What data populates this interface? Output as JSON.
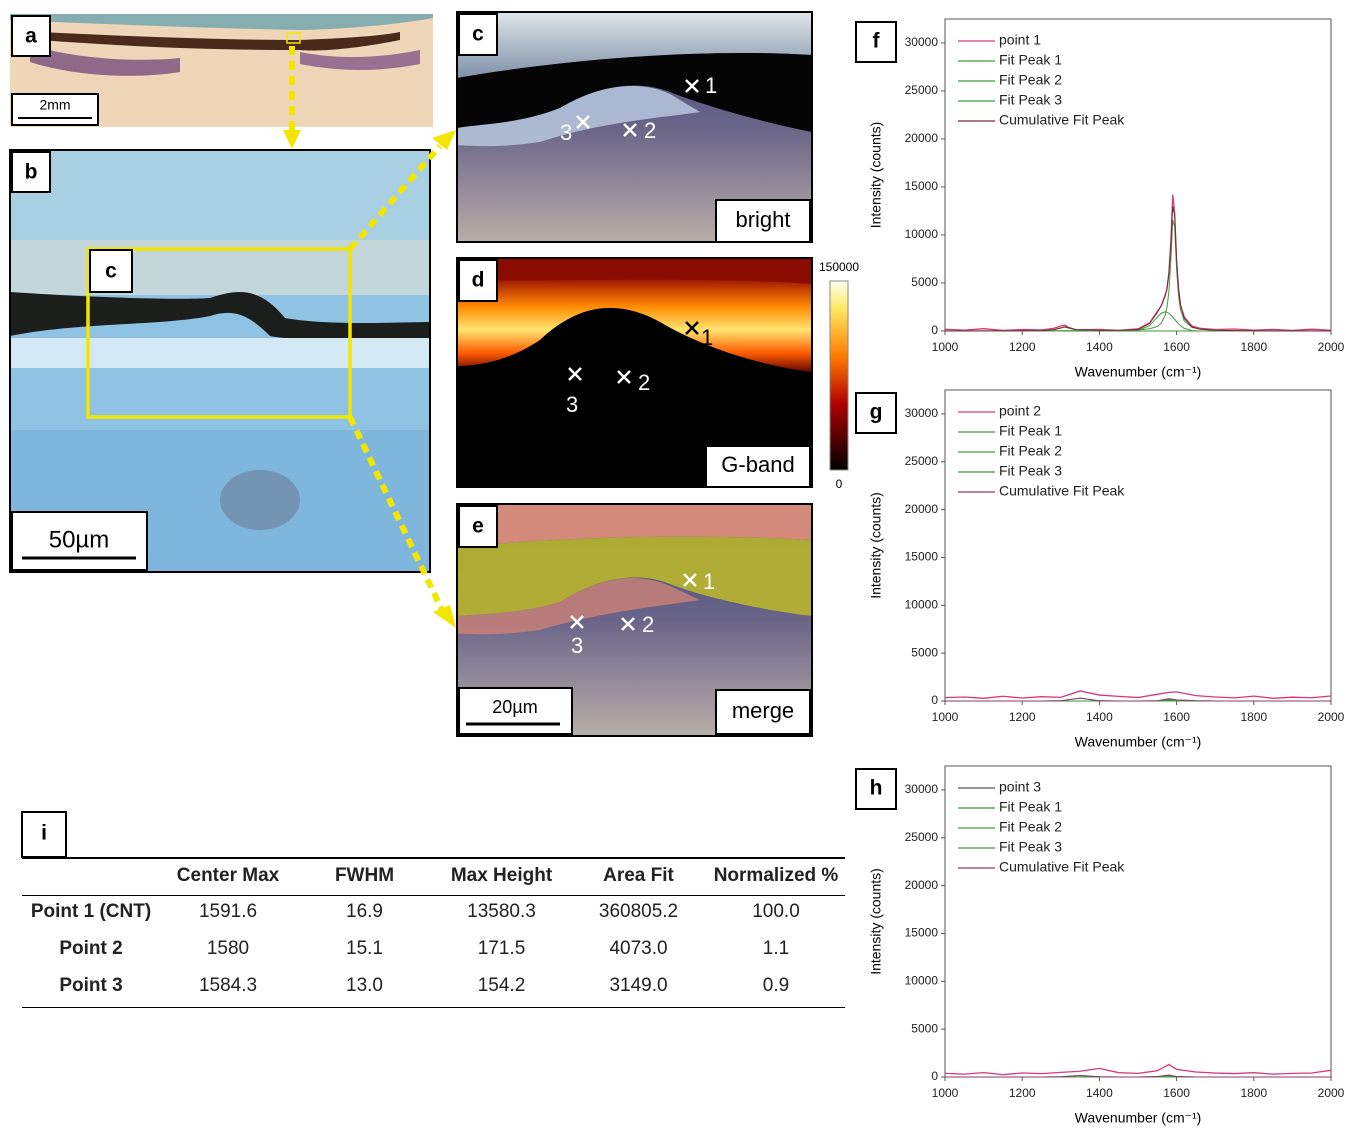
{
  "panels": {
    "a": {
      "label": "a",
      "scale_bar": "2mm"
    },
    "b": {
      "label": "b",
      "scale_bar": "50µm",
      "roi_label": "c"
    },
    "c": {
      "label": "c",
      "mode": "bright",
      "points": [
        "1",
        "2",
        "3"
      ]
    },
    "d": {
      "label": "d",
      "mode": "G-band",
      "points": [
        "1",
        "2",
        "3"
      ],
      "colorbar_ticks": [
        0,
        150000
      ]
    },
    "e": {
      "label": "e",
      "mode": "merge",
      "scale_bar": "20µm",
      "points": [
        "1",
        "2",
        "3"
      ]
    }
  },
  "table": {
    "label": "i",
    "columns": [
      "Center Max",
      "FWHM",
      "Max Height",
      "Area Fit",
      "Normalized %"
    ],
    "rows": [
      {
        "name": "Point 1 (CNT)",
        "cells": [
          "1591.6",
          "16.9",
          "13580.3",
          "360805.2",
          "100.0"
        ]
      },
      {
        "name": "Point 2",
        "cells": [
          "1580",
          "15.1",
          "171.5",
          "4073.0",
          "1.1"
        ]
      },
      {
        "name": "Point 3",
        "cells": [
          "1584.3",
          "13.0",
          "154.2",
          "3149.0",
          "0.9"
        ]
      }
    ]
  },
  "chart_data": [
    {
      "type": "line",
      "panel_label": "f",
      "x_label": "Wavenumber (cm⁻¹)",
      "y_label": "Intensity (counts)",
      "xlim": [
        1000,
        2000
      ],
      "xticks": [
        1000,
        1200,
        1400,
        1600,
        1800,
        2000
      ],
      "ylim": [
        0,
        32500
      ],
      "yticks": [
        0,
        5000,
        10000,
        15000,
        20000,
        25000,
        30000
      ],
      "legend": "upper left",
      "x": [
        1000,
        1050,
        1100,
        1150,
        1200,
        1250,
        1280,
        1300,
        1310,
        1320,
        1340,
        1400,
        1450,
        1500,
        1530,
        1550,
        1560,
        1570,
        1575,
        1580,
        1585,
        1590,
        1595,
        1600,
        1605,
        1610,
        1620,
        1640,
        1660,
        1700,
        1750,
        1800,
        1850,
        1900,
        1950,
        2000
      ],
      "series": [
        {
          "name": "point 1",
          "color": "#d6387a",
          "values": [
            180,
            90,
            240,
            60,
            150,
            110,
            260,
            520,
            610,
            380,
            120,
            170,
            60,
            230,
            850,
            2050,
            2600,
            3700,
            4350,
            6100,
            9200,
            14200,
            12300,
            7300,
            4500,
            2700,
            1450,
            520,
            280,
            150,
            210,
            90,
            160,
            60,
            190,
            80
          ]
        },
        {
          "name": "Fit Peak 1",
          "color": "#3f9a3f",
          "values": [
            10,
            10,
            15,
            15,
            20,
            25,
            30,
            30,
            35,
            35,
            40,
            50,
            70,
            100,
            230,
            480,
            800,
            1590,
            2440,
            4080,
            7270,
            11560,
            10850,
            6470,
            3650,
            2230,
            1030,
            370,
            190,
            75,
            40,
            25,
            15,
            10,
            10,
            5
          ]
        },
        {
          "name": "Fit Peak 2",
          "color": "#3f9a3f",
          "values": [
            0,
            0,
            0,
            0,
            0,
            0,
            0,
            0,
            0,
            0,
            0,
            0,
            0,
            40,
            560,
            1450,
            1850,
            2000,
            1960,
            1850,
            1670,
            1450,
            1210,
            970,
            750,
            560,
            270,
            40,
            0,
            0,
            0,
            0,
            0,
            0,
            0,
            0
          ]
        },
        {
          "name": "Fit Peak 3",
          "color": "#3f9a3f",
          "values": [
            0,
            0,
            0,
            0,
            0,
            20,
            100,
            300,
            400,
            300,
            100,
            10,
            0,
            0,
            0,
            0,
            0,
            0,
            0,
            0,
            0,
            0,
            0,
            0,
            0,
            0,
            0,
            0,
            0,
            0,
            0,
            0,
            0,
            0,
            0,
            0
          ]
        },
        {
          "name": "Cumulative Fit Peak",
          "color": "#7a2a3a",
          "values": [
            10,
            10,
            15,
            15,
            20,
            45,
            130,
            330,
            435,
            335,
            140,
            60,
            70,
            140,
            790,
            1930,
            2650,
            3590,
            4400,
            5930,
            8940,
            13010,
            12060,
            7440,
            4400,
            2790,
            1300,
            410,
            190,
            75,
            40,
            25,
            15,
            10,
            10,
            5
          ]
        }
      ]
    },
    {
      "type": "line",
      "panel_label": "g",
      "x_label": "Wavenumber (cm⁻¹)",
      "y_label": "Intensity (counts)",
      "xlim": [
        1000,
        2000
      ],
      "xticks": [
        1000,
        1200,
        1400,
        1600,
        1800,
        2000
      ],
      "ylim": [
        0,
        32500
      ],
      "yticks": [
        0,
        5000,
        10000,
        15000,
        20000,
        25000,
        30000
      ],
      "legend": "upper left",
      "x": [
        1000,
        1050,
        1100,
        1150,
        1200,
        1250,
        1300,
        1350,
        1400,
        1450,
        1500,
        1550,
        1580,
        1600,
        1650,
        1700,
        1750,
        1800,
        1850,
        1900,
        1950,
        2000
      ],
      "series": [
        {
          "name": "point 2",
          "color": "#d6387a",
          "values": [
            350,
            420,
            280,
            500,
            310,
            450,
            380,
            1050,
            620,
            480,
            360,
            700,
            900,
            950,
            560,
            420,
            330,
            510,
            280,
            400,
            340,
            520
          ]
        },
        {
          "name": "Fit Peak 1",
          "color": "#3f9a3f",
          "values": [
            0,
            0,
            0,
            0,
            0,
            0,
            0,
            0,
            0,
            0,
            0,
            10,
            171,
            21,
            0,
            0,
            0,
            0,
            0,
            0,
            0,
            0
          ]
        },
        {
          "name": "Fit Peak 2",
          "color": "#3f9a3f",
          "values": [
            0,
            0,
            0,
            0,
            0,
            0,
            20,
            300,
            20,
            0,
            0,
            0,
            0,
            0,
            0,
            0,
            0,
            0,
            0,
            0,
            0,
            0
          ]
        },
        {
          "name": "Fit Peak 3",
          "color": "#3f9a3f",
          "values": [
            0,
            0,
            0,
            0,
            0,
            0,
            0,
            0,
            0,
            0,
            0,
            20,
            80,
            100,
            20,
            0,
            0,
            0,
            0,
            0,
            0,
            0
          ]
        },
        {
          "name": "Cumulative Fit Peak",
          "color": "#8a3a6a",
          "values": [
            0,
            0,
            0,
            0,
            0,
            0,
            20,
            300,
            20,
            0,
            0,
            30,
            251,
            121,
            20,
            0,
            0,
            0,
            0,
            0,
            0,
            0
          ]
        }
      ]
    },
    {
      "type": "line",
      "panel_label": "h",
      "x_label": "Wavenumber (cm⁻¹)",
      "y_label": "Intensity (counts)",
      "xlim": [
        1000,
        2000
      ],
      "xticks": [
        1000,
        1200,
        1400,
        1600,
        1800,
        2000
      ],
      "ylim": [
        0,
        32500
      ],
      "yticks": [
        0,
        5000,
        10000,
        15000,
        20000,
        25000,
        30000
      ],
      "legend": "upper left",
      "x": [
        1000,
        1050,
        1100,
        1150,
        1200,
        1250,
        1300,
        1350,
        1400,
        1450,
        1500,
        1550,
        1580,
        1600,
        1650,
        1700,
        1750,
        1800,
        1850,
        1900,
        1950,
        2000
      ],
      "series": [
        {
          "name": "point 3",
          "color": "#d6387a",
          "legend_color": "#555555",
          "values": [
            380,
            300,
            460,
            250,
            420,
            350,
            480,
            600,
            900,
            450,
            380,
            650,
            1300,
            800,
            520,
            410,
            360,
            450,
            300,
            380,
            420,
            700
          ]
        },
        {
          "name": "Fit Peak 1",
          "color": "#3f9a3f",
          "values": [
            0,
            0,
            0,
            0,
            0,
            0,
            0,
            0,
            0,
            0,
            0,
            8,
            150,
            15,
            0,
            0,
            0,
            0,
            0,
            0,
            0,
            0
          ]
        },
        {
          "name": "Fit Peak 2",
          "color": "#3f9a3f",
          "values": [
            0,
            0,
            0,
            0,
            0,
            0,
            0,
            0,
            0,
            0,
            0,
            40,
            60,
            40,
            0,
            0,
            0,
            0,
            0,
            0,
            0,
            0
          ]
        },
        {
          "name": "Fit Peak 3",
          "color": "#3f9a3f",
          "values": [
            0,
            0,
            0,
            0,
            0,
            0,
            20,
            150,
            20,
            0,
            0,
            0,
            0,
            0,
            0,
            0,
            0,
            0,
            0,
            0,
            0,
            0
          ]
        },
        {
          "name": "Cumulative Fit Peak",
          "color": "#8a3a6a",
          "values": [
            0,
            0,
            0,
            0,
            0,
            0,
            20,
            150,
            20,
            0,
            0,
            48,
            210,
            55,
            0,
            0,
            0,
            0,
            0,
            0,
            0,
            0
          ]
        }
      ]
    }
  ]
}
